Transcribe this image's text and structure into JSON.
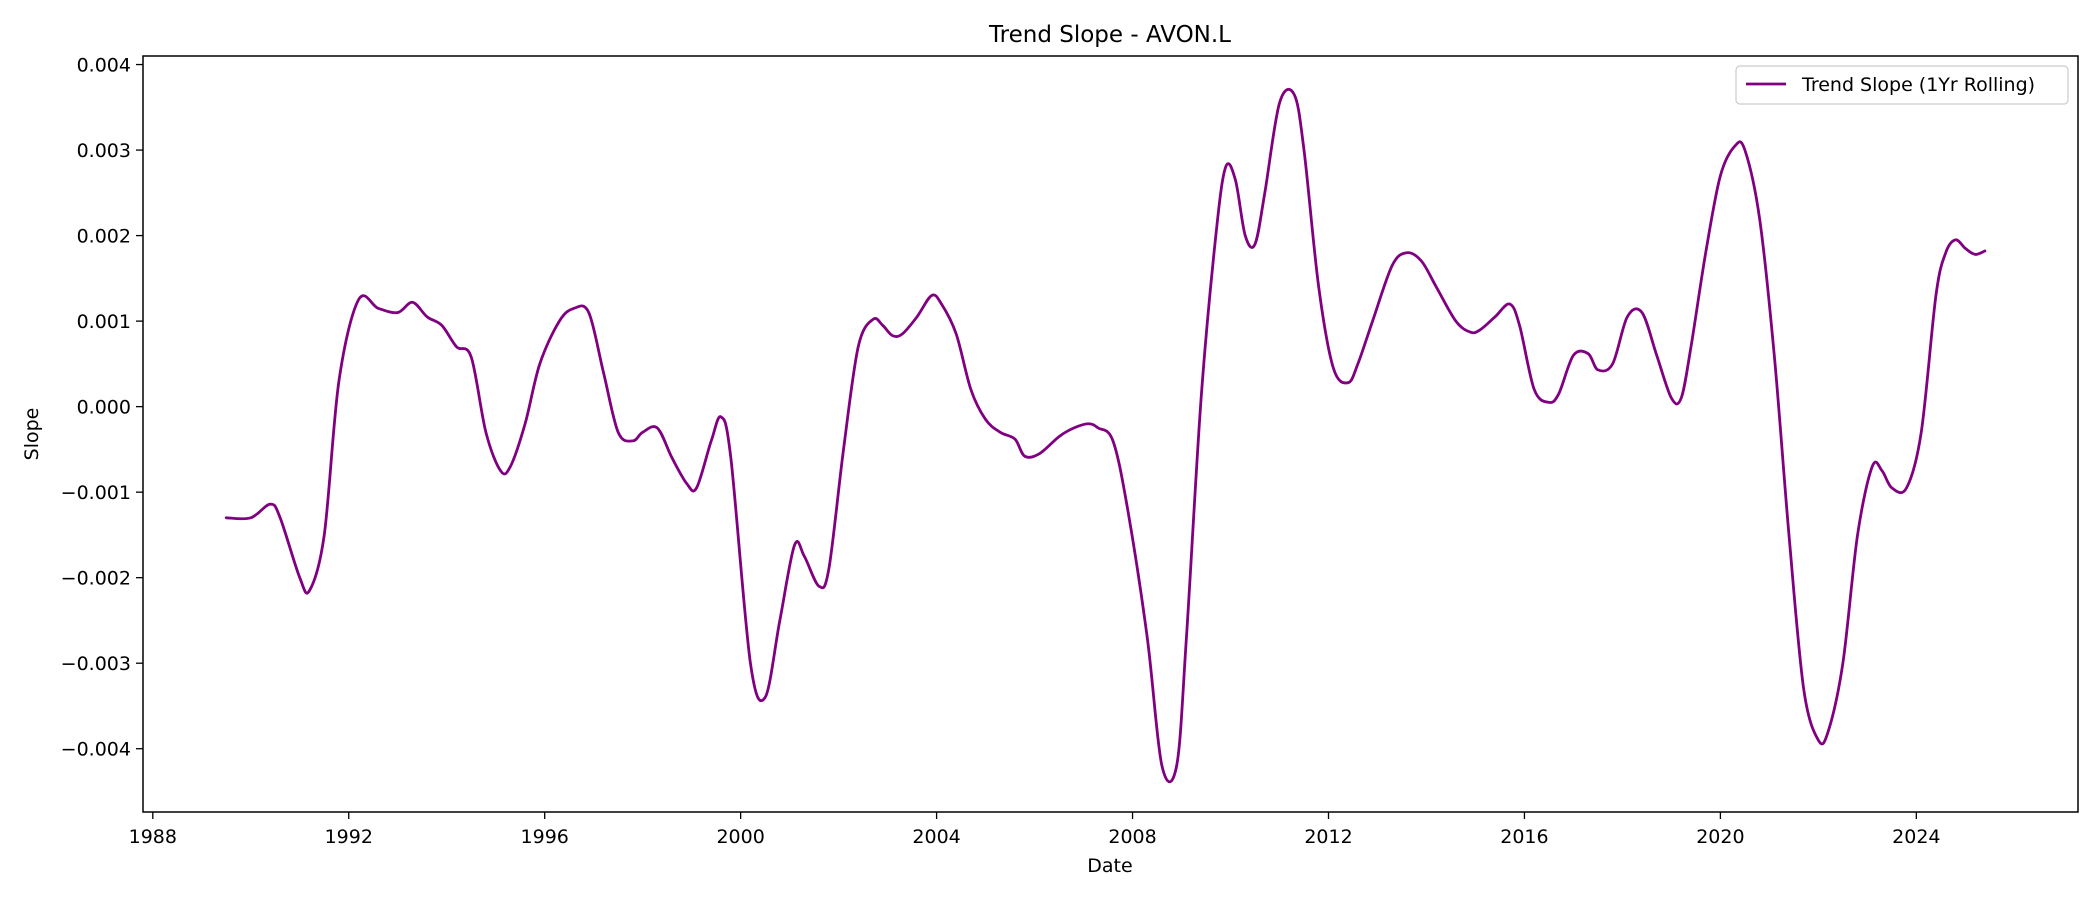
{
  "chart_data": {
    "type": "line",
    "title": "Trend Slope - AVON.L",
    "xlabel": "Date",
    "ylabel": "Slope",
    "x_ticks": [
      1988,
      1992,
      1996,
      2000,
      2004,
      2008,
      2012,
      2016,
      2020,
      2024
    ],
    "x_tick_labels": [
      "1988",
      "1992",
      "1996",
      "2000",
      "2004",
      "2008",
      "2012",
      "2016",
      "2020",
      "2024"
    ],
    "y_ticks": [
      -0.004,
      -0.003,
      -0.002,
      -0.001,
      0.0,
      0.001,
      0.002,
      0.003,
      0.004
    ],
    "y_tick_labels": [
      "−0.004",
      "−0.003",
      "−0.002",
      "−0.001",
      "0.000",
      "0.001",
      "0.002",
      "0.003",
      "0.004"
    ],
    "xlim": [
      1987.8,
      2027.3
    ],
    "ylim": [
      -0.00474,
      0.0041
    ],
    "grid": false,
    "legend_position": "top-right",
    "series": [
      {
        "name": "Trend Slope (1Yr Rolling)",
        "color": "#800080",
        "x": [
          1989.5,
          1990.0,
          1990.4,
          1990.6,
          1991.0,
          1991.2,
          1991.5,
          1991.8,
          1992.2,
          1992.6,
          1993.0,
          1993.3,
          1993.6,
          1993.9,
          1994.2,
          1994.5,
          1994.8,
          1995.1,
          1995.3,
          1995.6,
          1995.9,
          1996.3,
          1996.6,
          1996.9,
          1997.2,
          1997.5,
          1997.8,
          1998.0,
          1998.3,
          1998.6,
          1998.9,
          1999.1,
          1999.4,
          1999.6,
          1999.8,
          2000.2,
          2000.5,
          2000.8,
          2001.1,
          2001.3,
          2001.6,
          2001.8,
          2002.1,
          2002.4,
          2002.7,
          2002.9,
          2003.1,
          2003.3,
          2003.6,
          2003.9,
          2004.1,
          2004.4,
          2004.7,
          2005.0,
          2005.3,
          2005.6,
          2005.8,
          2006.1,
          2006.5,
          2006.8,
          2007.1,
          2007.3,
          2007.6,
          2007.9,
          2008.3,
          2008.6,
          2008.9,
          2009.1,
          2009.4,
          2009.7,
          2009.9,
          2010.1,
          2010.3,
          2010.5,
          2010.7,
          2011.0,
          2011.3,
          2011.5,
          2011.8,
          2012.1,
          2012.4,
          2012.6,
          2012.9,
          2013.3,
          2013.6,
          2013.9,
          2014.2,
          2014.6,
          2014.9,
          2015.1,
          2015.4,
          2015.7,
          2015.9,
          2016.2,
          2016.5,
          2016.7,
          2017.0,
          2017.3,
          2017.5,
          2017.8,
          2018.1,
          2018.4,
          2018.7,
          2019.0,
          2019.2,
          2019.4,
          2019.7,
          2020.0,
          2020.3,
          2020.5,
          2020.8,
          2021.1,
          2021.4,
          2021.7,
          2022.0,
          2022.2,
          2022.5,
          2022.8,
          2023.1,
          2023.3,
          2023.5,
          2023.8,
          2024.1,
          2024.4,
          2024.6,
          2024.8,
          2025.0,
          2025.2,
          2025.4
        ],
        "y": [
          -0.0013,
          -0.0013,
          -0.00114,
          -0.0013,
          -0.002,
          -0.00215,
          -0.0015,
          0.0003,
          0.00125,
          0.00115,
          0.0011,
          0.00122,
          0.00105,
          0.00095,
          0.0007,
          0.00058,
          -0.0003,
          -0.00075,
          -0.0007,
          -0.0002,
          0.0005,
          0.001,
          0.00115,
          0.0011,
          0.0004,
          -0.0003,
          -0.0004,
          -0.0003,
          -0.00025,
          -0.0006,
          -0.0009,
          -0.00095,
          -0.0004,
          -0.00012,
          -0.0006,
          -0.003,
          -0.0034,
          -0.0025,
          -0.00162,
          -0.00175,
          -0.0021,
          -0.0019,
          -0.0005,
          0.0007,
          0.00102,
          0.00095,
          0.00083,
          0.00085,
          0.00105,
          0.0013,
          0.0012,
          0.00085,
          0.0002,
          -0.00015,
          -0.0003,
          -0.00038,
          -0.00058,
          -0.00055,
          -0.00035,
          -0.00025,
          -0.0002,
          -0.00025,
          -0.0004,
          -0.0012,
          -0.0027,
          -0.0042,
          -0.0042,
          -0.0027,
          0.0001,
          0.002,
          0.0028,
          0.00265,
          0.002,
          0.0019,
          0.0025,
          0.00355,
          0.00365,
          0.003,
          0.0014,
          0.00045,
          0.00028,
          0.0005,
          0.001,
          0.00165,
          0.0018,
          0.0017,
          0.0014,
          0.001,
          0.00087,
          0.0009,
          0.00105,
          0.0012,
          0.00095,
          0.0002,
          5e-05,
          0.00015,
          0.0006,
          0.00062,
          0.00043,
          0.0005,
          0.00105,
          0.0011,
          0.0006,
          0.0001,
          0.0001,
          0.0007,
          0.0018,
          0.0027,
          0.00305,
          0.003,
          0.0022,
          0.0006,
          -0.0015,
          -0.0033,
          -0.0039,
          -0.0038,
          -0.003,
          -0.0015,
          -0.0007,
          -0.00075,
          -0.00095,
          -0.00095,
          -0.0003,
          0.0013,
          0.0018,
          0.00195,
          0.00185,
          0.00178,
          0.00182
        ]
      }
    ]
  }
}
